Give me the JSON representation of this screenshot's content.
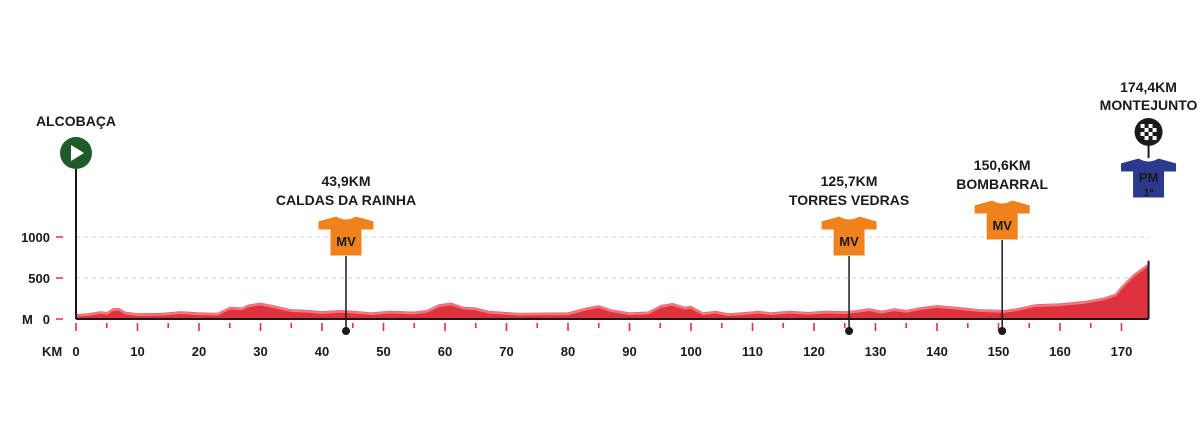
{
  "chart_data": {
    "type": "area",
    "x_unit_label": "KM",
    "y_unit_label": "M",
    "xlim": [
      0,
      174.4
    ],
    "ylim": [
      0,
      1000
    ],
    "x_ticks": [
      0,
      10,
      20,
      30,
      40,
      50,
      60,
      70,
      80,
      90,
      100,
      110,
      120,
      130,
      140,
      150,
      160,
      170
    ],
    "y_ticks": [
      {
        "value": 0,
        "label": "0"
      },
      {
        "value": 500,
        "label": "500"
      },
      {
        "value": 1000,
        "label": "1000"
      }
    ],
    "grid": "dashed horizontal lines at 500 and 1000",
    "colors": {
      "profile_fill": "#e0323c",
      "profile_top": "#f08a8e",
      "axis": "#e0323c",
      "start": "#1f5b2a",
      "jersey_orange": "#f0821e",
      "jersey_blue": "#2b3a8f"
    },
    "elevation": [
      {
        "x": 0,
        "y": 60
      },
      {
        "x": 2,
        "y": 70
      },
      {
        "x": 4,
        "y": 95
      },
      {
        "x": 5,
        "y": 85
      },
      {
        "x": 6,
        "y": 130
      },
      {
        "x": 7,
        "y": 135
      },
      {
        "x": 8,
        "y": 90
      },
      {
        "x": 10,
        "y": 70
      },
      {
        "x": 14,
        "y": 75
      },
      {
        "x": 17,
        "y": 95
      },
      {
        "x": 20,
        "y": 80
      },
      {
        "x": 23,
        "y": 75
      },
      {
        "x": 25,
        "y": 150
      },
      {
        "x": 27,
        "y": 140
      },
      {
        "x": 28,
        "y": 175
      },
      {
        "x": 30,
        "y": 200
      },
      {
        "x": 32,
        "y": 170
      },
      {
        "x": 35,
        "y": 120
      },
      {
        "x": 38,
        "y": 110
      },
      {
        "x": 40,
        "y": 95
      },
      {
        "x": 43,
        "y": 110
      },
      {
        "x": 45,
        "y": 100
      },
      {
        "x": 48,
        "y": 80
      },
      {
        "x": 51,
        "y": 100
      },
      {
        "x": 55,
        "y": 90
      },
      {
        "x": 57,
        "y": 110
      },
      {
        "x": 59,
        "y": 180
      },
      {
        "x": 61,
        "y": 200
      },
      {
        "x": 63,
        "y": 150
      },
      {
        "x": 65,
        "y": 140
      },
      {
        "x": 67,
        "y": 100
      },
      {
        "x": 72,
        "y": 75
      },
      {
        "x": 80,
        "y": 80
      },
      {
        "x": 83,
        "y": 140
      },
      {
        "x": 85,
        "y": 170
      },
      {
        "x": 87,
        "y": 120
      },
      {
        "x": 90,
        "y": 80
      },
      {
        "x": 93,
        "y": 90
      },
      {
        "x": 95,
        "y": 170
      },
      {
        "x": 97,
        "y": 195
      },
      {
        "x": 99,
        "y": 150
      },
      {
        "x": 100,
        "y": 160
      },
      {
        "x": 102,
        "y": 80
      },
      {
        "x": 104,
        "y": 100
      },
      {
        "x": 106,
        "y": 70
      },
      {
        "x": 109,
        "y": 85
      },
      {
        "x": 111,
        "y": 100
      },
      {
        "x": 113,
        "y": 80
      },
      {
        "x": 116,
        "y": 100
      },
      {
        "x": 119,
        "y": 85
      },
      {
        "x": 122,
        "y": 100
      },
      {
        "x": 125,
        "y": 95
      },
      {
        "x": 127,
        "y": 110
      },
      {
        "x": 129,
        "y": 130
      },
      {
        "x": 131,
        "y": 100
      },
      {
        "x": 133,
        "y": 130
      },
      {
        "x": 135,
        "y": 110
      },
      {
        "x": 137,
        "y": 140
      },
      {
        "x": 140,
        "y": 170
      },
      {
        "x": 143,
        "y": 150
      },
      {
        "x": 147,
        "y": 120
      },
      {
        "x": 151,
        "y": 110
      },
      {
        "x": 153,
        "y": 130
      },
      {
        "x": 156,
        "y": 180
      },
      {
        "x": 160,
        "y": 190
      },
      {
        "x": 164,
        "y": 220
      },
      {
        "x": 167,
        "y": 260
      },
      {
        "x": 169,
        "y": 310
      },
      {
        "x": 170,
        "y": 400
      },
      {
        "x": 172,
        "y": 550
      },
      {
        "x": 174.4,
        "y": 680
      }
    ],
    "waypoints": [
      {
        "id": "start",
        "km": 0,
        "name": "ALCOBAÇA",
        "icon": "start-play-icon"
      },
      {
        "id": "caldas",
        "km": 43.9,
        "dist_label": "43,9KM",
        "name": "CALDAS DA RAINHA",
        "jersey": "MV",
        "icon": "orange-jersey-icon"
      },
      {
        "id": "torres",
        "km": 125.7,
        "dist_label": "125,7KM",
        "name": "TORRES VEDRAS",
        "jersey": "MV",
        "icon": "orange-jersey-icon"
      },
      {
        "id": "bombarral",
        "km": 150.6,
        "dist_label": "150,6KM",
        "name": "BOMBARRAL",
        "jersey": "MV",
        "icon": "orange-jersey-icon"
      },
      {
        "id": "finish",
        "km": 174.4,
        "dist_label": "174,4KM",
        "name": "MONTEJUNTO",
        "jersey": "PM",
        "jersey_sub": "1ª",
        "icon": "finish-flag-icon"
      }
    ]
  }
}
